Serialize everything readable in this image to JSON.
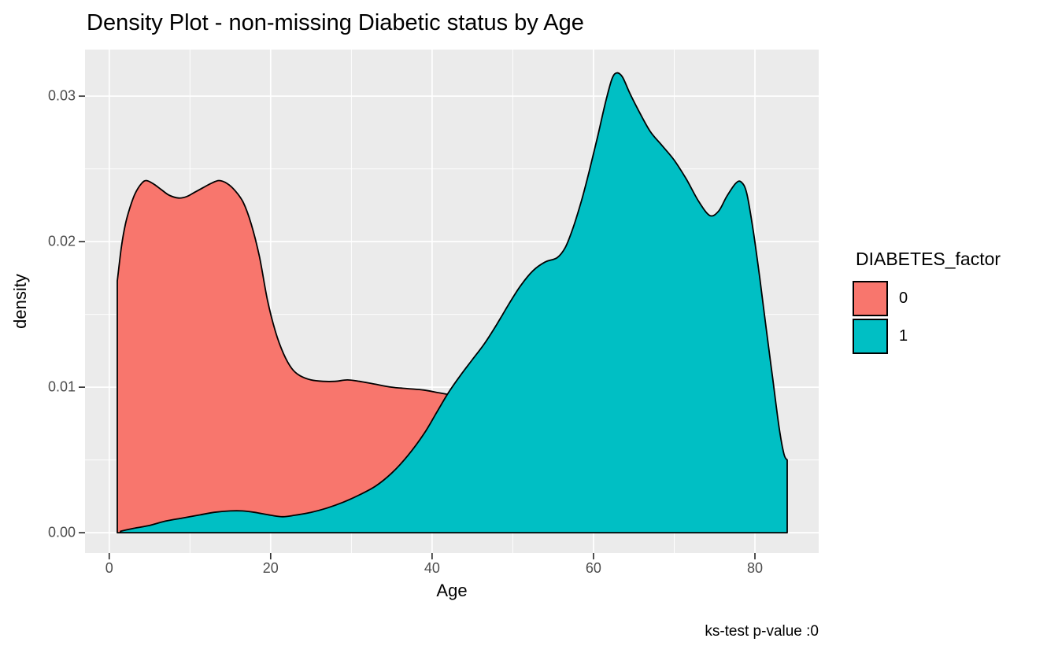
{
  "chart_data": {
    "type": "area",
    "subtype": "density",
    "title": "Density Plot - non-missing Diabetic status by Age",
    "xlabel": "Age",
    "ylabel": "density",
    "caption": "ks-test p-value :0",
    "xlim": [
      -3.0,
      87.9
    ],
    "ylim": [
      -0.0014,
      0.0332
    ],
    "x_ticks": [
      0,
      20,
      40,
      60,
      80
    ],
    "x_tick_labels": [
      "0",
      "20",
      "40",
      "60",
      "80"
    ],
    "y_ticks": [
      0,
      0.01,
      0.02,
      0.03
    ],
    "y_tick_labels": [
      "0.00",
      "0.01",
      "0.02",
      "0.03"
    ],
    "x_minor_ticks": [
      10,
      30,
      50,
      70
    ],
    "y_minor_ticks": [
      0.005,
      0.015,
      0.025
    ],
    "grid": true,
    "legend_position": "right",
    "panel_bg": "#EBEBEB",
    "grid_color": "#FFFFFF",
    "tick_color": "#333333",
    "outline_color": "#000000",
    "series": [
      {
        "name": "0",
        "fill": "#F8766D",
        "points": [
          [
            1,
            0.0173
          ],
          [
            1.5,
            0.0196
          ],
          [
            2,
            0.0212
          ],
          [
            2.6,
            0.0224
          ],
          [
            3.2,
            0.0233
          ],
          [
            4,
            0.024
          ],
          [
            4.6,
            0.0242
          ],
          [
            5.4,
            0.024
          ],
          [
            6.4,
            0.0236
          ],
          [
            7.4,
            0.0232
          ],
          [
            8.6,
            0.023
          ],
          [
            9.6,
            0.0231
          ],
          [
            10.6,
            0.0234
          ],
          [
            11.6,
            0.0237
          ],
          [
            12.6,
            0.024
          ],
          [
            13.6,
            0.0242
          ],
          [
            14.6,
            0.024
          ],
          [
            15.6,
            0.0235
          ],
          [
            16.6,
            0.0227
          ],
          [
            17.6,
            0.0212
          ],
          [
            18.6,
            0.019
          ],
          [
            19.6,
            0.016
          ],
          [
            20.6,
            0.0138
          ],
          [
            21.6,
            0.0123
          ],
          [
            22.6,
            0.0113
          ],
          [
            23.6,
            0.0108
          ],
          [
            25,
            0.0105
          ],
          [
            26.5,
            0.0104
          ],
          [
            28,
            0.0104
          ],
          [
            29.5,
            0.0105
          ],
          [
            31,
            0.0104
          ],
          [
            33,
            0.0102
          ],
          [
            35,
            0.01
          ],
          [
            37,
            0.0099
          ],
          [
            39,
            0.0098
          ],
          [
            41,
            0.0096
          ],
          [
            43,
            0.0094
          ],
          [
            45,
            0.0092
          ],
          [
            47,
            0.0089
          ]
        ]
      },
      {
        "name": "1",
        "fill": "#00BFC4",
        "points": [
          [
            1.4,
            0.0001
          ],
          [
            3,
            0.0003
          ],
          [
            5,
            0.0005
          ],
          [
            7,
            0.0008
          ],
          [
            9,
            0.001
          ],
          [
            11,
            0.0012
          ],
          [
            13,
            0.0014
          ],
          [
            15,
            0.0015
          ],
          [
            16.5,
            0.0015
          ],
          [
            18,
            0.0014
          ],
          [
            20,
            0.0012
          ],
          [
            21.5,
            0.0011
          ],
          [
            23,
            0.0012
          ],
          [
            25,
            0.0014
          ],
          [
            27,
            0.0017
          ],
          [
            29,
            0.0021
          ],
          [
            31,
            0.0026
          ],
          [
            33,
            0.0032
          ],
          [
            35,
            0.0041
          ],
          [
            37,
            0.0053
          ],
          [
            39,
            0.0068
          ],
          [
            40.5,
            0.0082
          ],
          [
            42,
            0.0096
          ],
          [
            43.5,
            0.0108
          ],
          [
            45,
            0.0119
          ],
          [
            46.5,
            0.013
          ],
          [
            48,
            0.0143
          ],
          [
            49.5,
            0.0157
          ],
          [
            51,
            0.017
          ],
          [
            52.5,
            0.018
          ],
          [
            54,
            0.0186
          ],
          [
            55.5,
            0.0189
          ],
          [
            56.5,
            0.0196
          ],
          [
            57.5,
            0.021
          ],
          [
            58.5,
            0.0228
          ],
          [
            59.5,
            0.0249
          ],
          [
            60.5,
            0.0272
          ],
          [
            61.5,
            0.0296
          ],
          [
            62.3,
            0.0312
          ],
          [
            62.9,
            0.0316
          ],
          [
            63.6,
            0.0313
          ],
          [
            64.5,
            0.0302
          ],
          [
            65.5,
            0.0291
          ],
          [
            67,
            0.0276
          ],
          [
            68.5,
            0.0266
          ],
          [
            70,
            0.0256
          ],
          [
            71.5,
            0.0243
          ],
          [
            73,
            0.0228
          ],
          [
            74.4,
            0.0218
          ],
          [
            75.5,
            0.0221
          ],
          [
            76.5,
            0.0231
          ],
          [
            77.6,
            0.024
          ],
          [
            78.3,
            0.0241
          ],
          [
            79,
            0.0233
          ],
          [
            79.8,
            0.0207
          ],
          [
            80.6,
            0.0175
          ],
          [
            81.4,
            0.014
          ],
          [
            82.2,
            0.0106
          ],
          [
            83,
            0.0072
          ],
          [
            83.6,
            0.0054
          ],
          [
            84,
            0.005
          ]
        ]
      }
    ]
  },
  "legend": {
    "title": "DIABETES_factor",
    "items": [
      {
        "label": "0",
        "color": "#F8766D"
      },
      {
        "label": "1",
        "color": "#00BFC4"
      }
    ]
  },
  "caption": {
    "text": "ks-test p-value :0"
  }
}
